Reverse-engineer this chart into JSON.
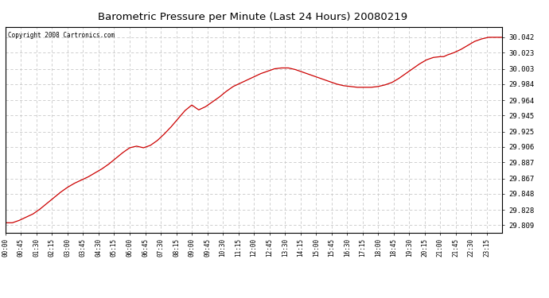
{
  "title": "Barometric Pressure per Minute (Last 24 Hours) 20080219",
  "copyright": "Copyright 2008 Cartronics.com",
  "line_color": "#cc0000",
  "background_color": "#ffffff",
  "plot_bg_color": "#ffffff",
  "grid_color": "#c8c8c8",
  "yticks": [
    29.809,
    29.828,
    29.848,
    29.867,
    29.887,
    29.906,
    29.925,
    29.945,
    29.964,
    29.984,
    30.003,
    30.023,
    30.042
  ],
  "xtick_labels": [
    "00:00",
    "00:45",
    "01:30",
    "02:15",
    "03:00",
    "03:45",
    "04:30",
    "05:15",
    "06:00",
    "06:45",
    "07:30",
    "08:15",
    "09:00",
    "09:45",
    "10:30",
    "11:15",
    "12:00",
    "12:45",
    "13:30",
    "14:15",
    "15:00",
    "15:45",
    "16:30",
    "17:15",
    "18:00",
    "18:45",
    "19:30",
    "20:15",
    "21:00",
    "21:45",
    "22:30",
    "23:15"
  ],
  "ylim": [
    29.8,
    30.055
  ],
  "curve_points": [
    [
      0,
      29.812
    ],
    [
      20,
      29.812
    ],
    [
      40,
      29.815
    ],
    [
      60,
      29.819
    ],
    [
      80,
      29.823
    ],
    [
      100,
      29.829
    ],
    [
      120,
      29.836
    ],
    [
      140,
      29.843
    ],
    [
      160,
      29.85
    ],
    [
      180,
      29.856
    ],
    [
      200,
      29.861
    ],
    [
      220,
      29.865
    ],
    [
      240,
      29.869
    ],
    [
      260,
      29.874
    ],
    [
      280,
      29.879
    ],
    [
      300,
      29.885
    ],
    [
      320,
      29.892
    ],
    [
      340,
      29.899
    ],
    [
      360,
      29.905
    ],
    [
      380,
      29.907
    ],
    [
      400,
      29.905
    ],
    [
      420,
      29.908
    ],
    [
      440,
      29.914
    ],
    [
      460,
      29.922
    ],
    [
      480,
      29.931
    ],
    [
      500,
      29.941
    ],
    [
      520,
      29.951
    ],
    [
      540,
      29.958
    ],
    [
      560,
      29.952
    ],
    [
      580,
      29.956
    ],
    [
      600,
      29.962
    ],
    [
      620,
      29.968
    ],
    [
      640,
      29.975
    ],
    [
      660,
      29.981
    ],
    [
      680,
      29.985
    ],
    [
      700,
      29.989
    ],
    [
      720,
      29.993
    ],
    [
      740,
      29.997
    ],
    [
      760,
      30.0
    ],
    [
      780,
      30.003
    ],
    [
      800,
      30.004
    ],
    [
      820,
      30.004
    ],
    [
      840,
      30.002
    ],
    [
      860,
      29.999
    ],
    [
      880,
      29.996
    ],
    [
      900,
      29.993
    ],
    [
      920,
      29.99
    ],
    [
      940,
      29.987
    ],
    [
      960,
      29.984
    ],
    [
      980,
      29.982
    ],
    [
      1000,
      29.981
    ],
    [
      1020,
      29.98
    ],
    [
      1040,
      29.98
    ],
    [
      1060,
      29.98
    ],
    [
      1080,
      29.981
    ],
    [
      1100,
      29.983
    ],
    [
      1120,
      29.986
    ],
    [
      1140,
      29.991
    ],
    [
      1160,
      29.997
    ],
    [
      1180,
      30.003
    ],
    [
      1200,
      30.009
    ],
    [
      1220,
      30.014
    ],
    [
      1240,
      30.017
    ],
    [
      1260,
      30.018
    ],
    [
      1270,
      30.018
    ],
    [
      1280,
      30.02
    ],
    [
      1300,
      30.023
    ],
    [
      1320,
      30.027
    ],
    [
      1340,
      30.032
    ],
    [
      1360,
      30.037
    ],
    [
      1380,
      30.04
    ],
    [
      1400,
      30.042
    ],
    [
      1420,
      30.042
    ],
    [
      1440,
      30.042
    ]
  ]
}
